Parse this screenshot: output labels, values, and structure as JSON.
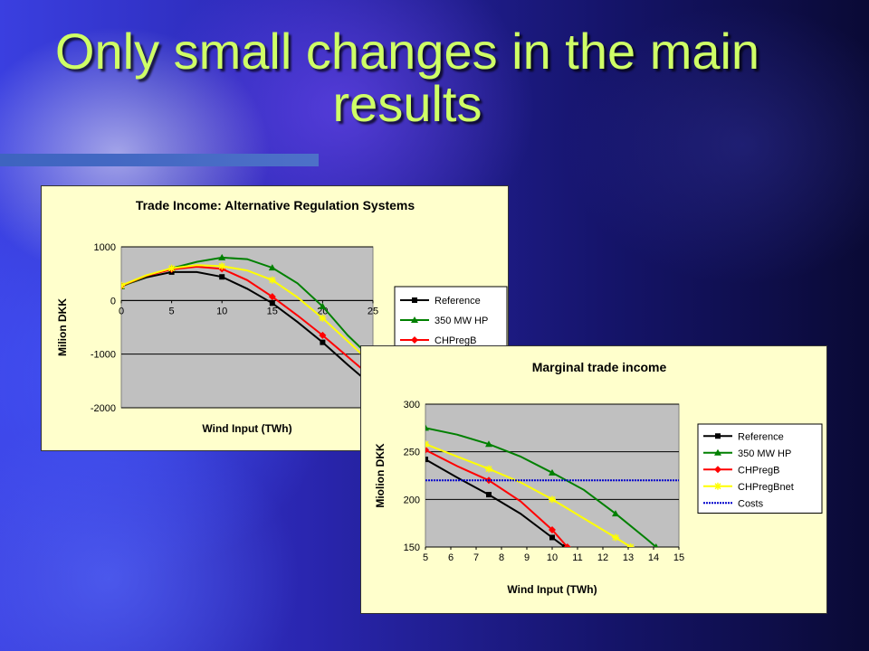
{
  "slide": {
    "title": "Only small changes in the main results",
    "title_color": "#cfff66"
  },
  "chart_data": [
    {
      "type": "line",
      "title": "Trade Income: Alternative Regulation Systems",
      "xlabel": "Wind Input (TWh)",
      "ylabel": "Milion DKK",
      "xlim": [
        0,
        25
      ],
      "ylim": [
        -2000,
        1000
      ],
      "xticks": [
        0,
        5,
        10,
        15,
        20,
        25
      ],
      "yticks": [
        -2000,
        -1000,
        0,
        1000
      ],
      "grid": true,
      "legend": "right",
      "series": [
        {
          "name": "Reference",
          "color": "#000000",
          "marker": "square",
          "x": [
            0,
            2.5,
            5,
            7.5,
            10,
            12.5,
            15,
            17.5,
            20,
            22.5,
            25
          ],
          "y": [
            270,
            430,
            530,
            530,
            440,
            220,
            -50,
            -400,
            -780,
            -1200,
            -1600
          ]
        },
        {
          "name": "350 MW HP",
          "color": "#008000",
          "marker": "triangle",
          "x": [
            0,
            2.5,
            5,
            7.5,
            10,
            12.5,
            15,
            17.5,
            20,
            22.5,
            25
          ],
          "y": [
            260,
            450,
            600,
            720,
            800,
            770,
            610,
            320,
            -110,
            -650,
            -1100
          ]
        },
        {
          "name": "CHPregB",
          "color": "#ff0000",
          "marker": "diamond",
          "x": [
            0,
            2.5,
            5,
            7.5,
            10,
            12.5,
            15,
            17.5,
            20,
            22.5,
            25
          ],
          "y": [
            270,
            460,
            580,
            630,
            590,
            380,
            70,
            -280,
            -650,
            -1050,
            -1450
          ]
        },
        {
          "name": "CHPregBnet",
          "color": "#ffff00",
          "marker": "asterisk",
          "x": [
            0,
            2.5,
            5,
            7.5,
            10,
            12.5,
            15,
            17.5,
            20,
            22.5,
            25
          ],
          "y": [
            280,
            470,
            600,
            660,
            640,
            560,
            380,
            60,
            -330,
            -760,
            -1200
          ]
        }
      ]
    },
    {
      "type": "line",
      "title": "Marginal trade income",
      "xlabel": "Wind Input (TWh)",
      "ylabel": "Miolion DKK",
      "xlim": [
        5,
        15
      ],
      "ylim": [
        150,
        300
      ],
      "xticks": [
        5,
        6,
        7,
        8,
        9,
        10,
        11,
        12,
        13,
        14,
        15
      ],
      "yticks": [
        150,
        200,
        250,
        300
      ],
      "grid": true,
      "legend": "right",
      "series": [
        {
          "name": "Reference",
          "color": "#000000",
          "marker": "square",
          "x": [
            5,
            6.25,
            7.5,
            8.75,
            10,
            10.5
          ],
          "y": [
            242,
            223,
            205,
            185,
            160,
            150
          ]
        },
        {
          "name": "350 MW HP",
          "color": "#008000",
          "marker": "triangle",
          "x": [
            5,
            6.25,
            7.5,
            8.75,
            10,
            11.25,
            12.5,
            13.75,
            14.1
          ],
          "y": [
            275,
            268,
            258,
            245,
            228,
            210,
            185,
            158,
            150
          ]
        },
        {
          "name": "CHPregB",
          "color": "#ff0000",
          "marker": "diamond",
          "x": [
            5,
            6.25,
            7.5,
            8.75,
            10,
            10.6
          ],
          "y": [
            252,
            235,
            220,
            198,
            168,
            150
          ]
        },
        {
          "name": "CHPregBnet",
          "color": "#ffff00",
          "marker": "asterisk",
          "x": [
            5,
            6.25,
            7.5,
            8.75,
            10,
            11.25,
            12.5,
            13.1
          ],
          "y": [
            258,
            245,
            232,
            218,
            200,
            180,
            160,
            150
          ]
        },
        {
          "name": "Costs",
          "color": "#0000cc",
          "marker": "dots",
          "dashed": true,
          "x": [
            5,
            15
          ],
          "y": [
            220,
            220
          ]
        }
      ]
    }
  ]
}
